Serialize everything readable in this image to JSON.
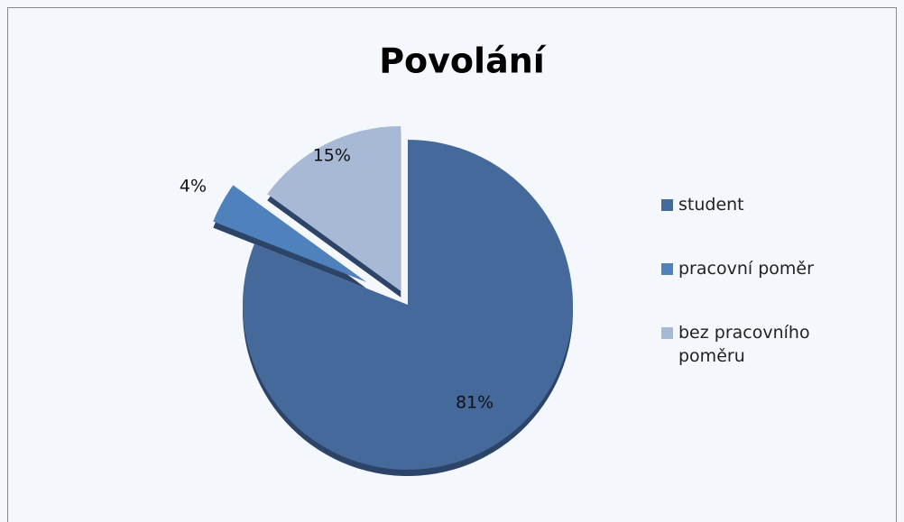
{
  "chart_data": {
    "type": "pie",
    "title": "Povolání",
    "categories": [
      "student",
      "pracovní poměr",
      "bez pracovního poměru"
    ],
    "values": [
      81,
      4,
      15
    ],
    "value_labels": [
      "81%",
      "4%",
      "15%"
    ],
    "colors": [
      "#44699a",
      "#4f81bd",
      "#a8b9d6"
    ],
    "legend": "right"
  }
}
